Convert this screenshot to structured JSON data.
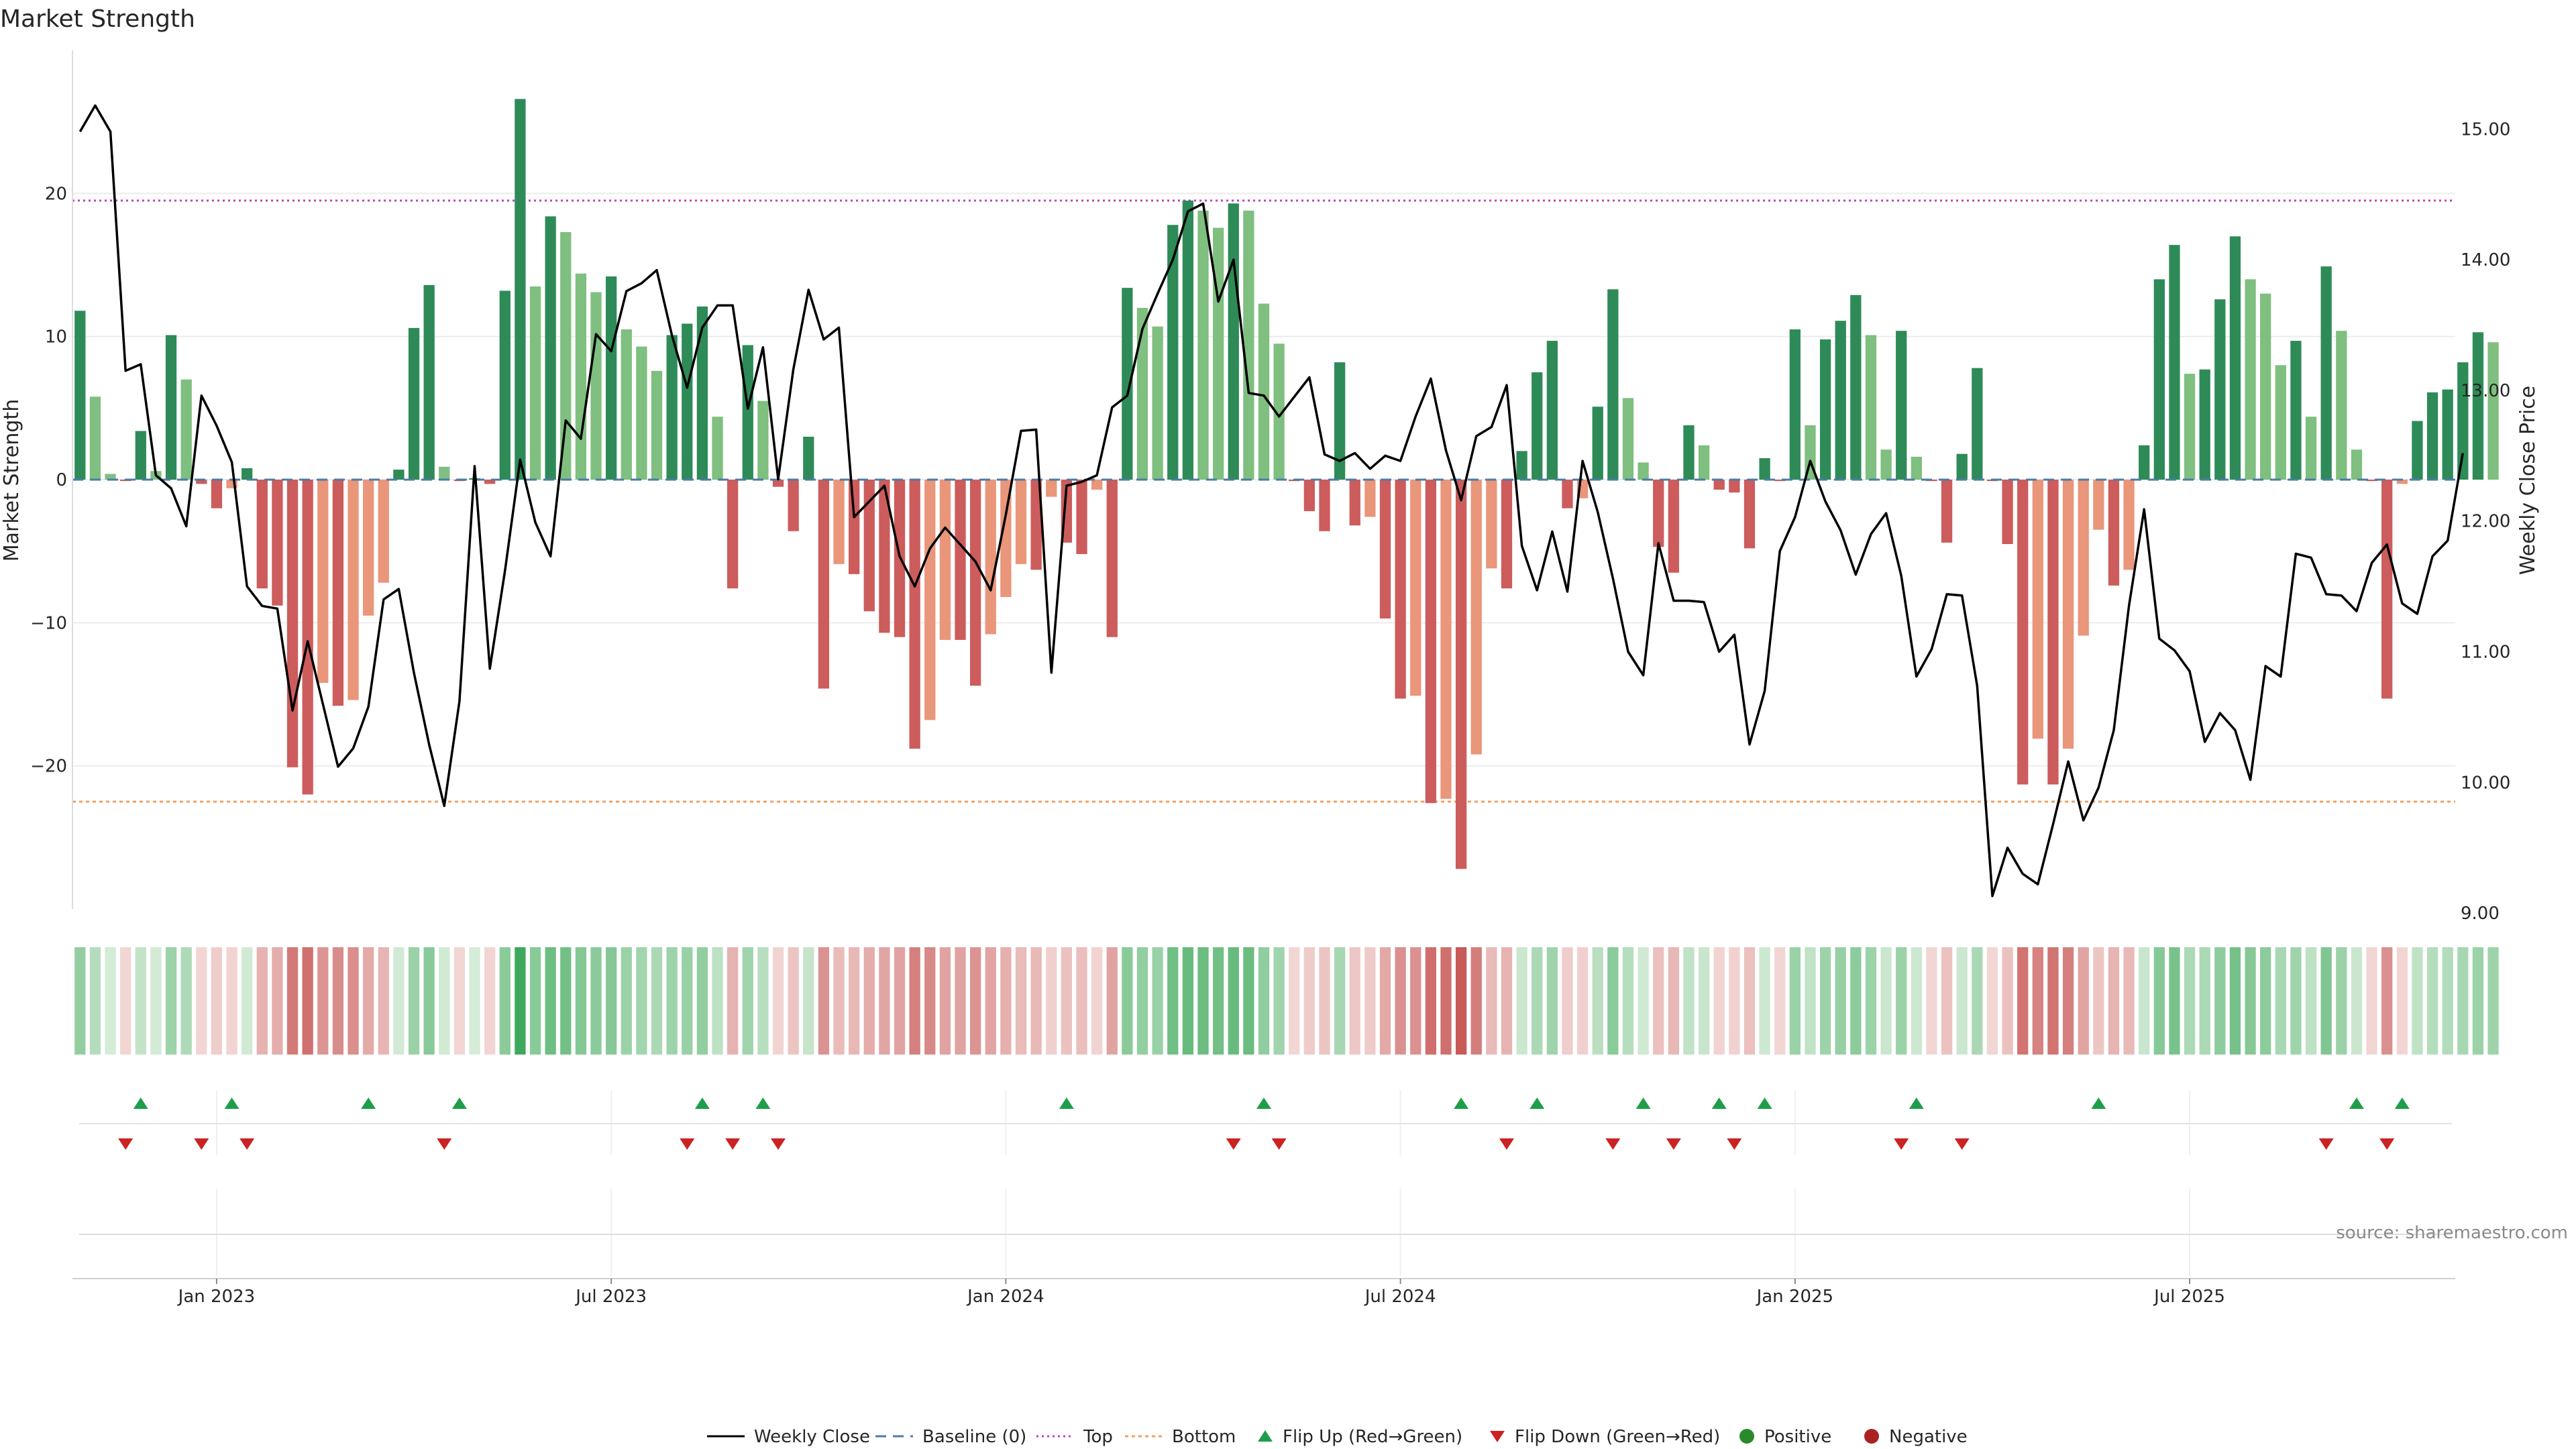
{
  "chart_data": {
    "type": "bar+line",
    "title": "Market Strength",
    "ylabel_left": "Market Strength",
    "ylabel_right": "Weekly Close Price",
    "left_ylim": [
      -30,
      30
    ],
    "left_yticks": [
      20,
      10,
      0,
      -10,
      -20
    ],
    "left_ytick_labels": [
      "20",
      "10",
      "0",
      "−10",
      "−20"
    ],
    "right_ylim": [
      8.8,
      15.5
    ],
    "right_yticks": [
      15.0,
      14.0,
      13.0,
      12.0,
      11.0,
      10.0,
      9.0
    ],
    "right_ytick_labels": [
      "15.00",
      "14.00",
      "13.00",
      "12.00",
      "11.00",
      "10.00",
      "9.00"
    ],
    "x_start": "2022-11-07",
    "week_count": 157,
    "xticks": [
      {
        "week": 9,
        "label": "Jan 2023"
      },
      {
        "week": 35,
        "label": "Jul 2023"
      },
      {
        "week": 61,
        "label": "Jan 2024"
      },
      {
        "week": 87,
        "label": "Jul 2024"
      },
      {
        "week": 113,
        "label": "Jan 2025"
      },
      {
        "week": 139,
        "label": "Jul 2025"
      }
    ],
    "top_threshold": 19.5,
    "bottom_threshold": -22.5,
    "strength": [
      11.8,
      5.8,
      0.4,
      -0.1,
      3.4,
      0.6,
      10.1,
      7.0,
      -0.3,
      -2.0,
      -0.6,
      0.8,
      -7.6,
      -8.8,
      -20.1,
      -22.0,
      -14.2,
      -15.8,
      -15.4,
      -9.5,
      -7.2,
      0.7,
      10.6,
      13.6,
      0.9,
      -0.1,
      0.1,
      -0.3,
      13.2,
      26.6,
      13.5,
      18.4,
      17.3,
      14.4,
      13.1,
      14.2,
      10.5,
      9.3,
      7.6,
      10.1,
      10.9,
      12.1,
      4.4,
      -7.6,
      9.4,
      5.5,
      -0.5,
      -3.6,
      3.0,
      -14.6,
      -5.9,
      -6.6,
      -9.2,
      -10.7,
      -11.0,
      -18.8,
      -16.8,
      -11.2,
      -11.2,
      -14.4,
      -10.8,
      -8.2,
      -5.9,
      -6.3,
      -1.2,
      -4.4,
      -5.2,
      -0.7,
      -11.0,
      13.4,
      12.0,
      10.7,
      17.8,
      19.5,
      18.8,
      17.6,
      19.3,
      18.8,
      12.3,
      9.5,
      -0.1,
      -2.2,
      -3.6,
      8.2,
      -3.2,
      -2.6,
      -9.7,
      -15.3,
      -15.1,
      -22.6,
      -22.3,
      -27.2,
      -19.2,
      -6.2,
      -7.6,
      2.0,
      7.5,
      9.7,
      -2.0,
      -1.3,
      5.1,
      13.3,
      5.7,
      1.2,
      -4.7,
      -6.5,
      3.8,
      2.4,
      -0.7,
      -0.9,
      -4.8,
      1.5,
      -0.1,
      10.5,
      3.8,
      9.8,
      11.1,
      12.9,
      10.1,
      2.1,
      10.4,
      1.6,
      -0.1,
      -4.4,
      1.8,
      7.8,
      -0.1,
      -4.5,
      -21.3,
      -18.1,
      -21.3,
      -18.8,
      -10.9,
      -3.5,
      -7.4,
      -6.3,
      2.4,
      14.0,
      16.4,
      7.4,
      7.7,
      12.6,
      17.0,
      14.0,
      13.0,
      8.0,
      9.7,
      4.4,
      14.9,
      10.4,
      2.1,
      -0.1,
      -15.3,
      -0.3,
      4.1,
      6.1,
      6.3,
      8.2,
      10.3,
      9.6
    ],
    "weekly_close": [
      14.98,
      15.18,
      14.98,
      13.15,
      13.2,
      12.35,
      12.25,
      11.96,
      12.96,
      12.73,
      12.45,
      11.5,
      11.35,
      11.33,
      10.55,
      11.08,
      10.6,
      10.12,
      10.26,
      10.58,
      11.4,
      11.48,
      10.84,
      10.29,
      9.82,
      10.62,
      12.42,
      10.87,
      11.62,
      12.47,
      11.99,
      11.73,
      12.77,
      12.63,
      13.43,
      13.3,
      13.76,
      13.82,
      13.92,
      13.42,
      13.02,
      13.48,
      13.65,
      13.65,
      12.86,
      13.33,
      12.32,
      13.16,
      13.77,
      13.39,
      13.48,
      12.03,
      12.15,
      12.27,
      11.73,
      11.5,
      11.79,
      11.95,
      11.82,
      11.69,
      11.47,
      12.05,
      12.69,
      12.7,
      10.84,
      12.27,
      12.3,
      12.35,
      12.87,
      12.96,
      13.47,
      13.74,
      14.0,
      14.37,
      14.43,
      13.68,
      14.0,
      12.98,
      12.96,
      12.8,
      12.95,
      13.1,
      12.51,
      12.46,
      12.52,
      12.4,
      12.5,
      12.46,
      12.8,
      13.09,
      12.54,
      12.16,
      12.65,
      12.72,
      13.04,
      11.81,
      11.47,
      11.92,
      11.46,
      12.46,
      12.07,
      11.56,
      11.0,
      10.82,
      11.83,
      11.39,
      11.39,
      11.38,
      11.0,
      11.13,
      10.29,
      10.7,
      11.77,
      12.03,
      12.46,
      12.15,
      11.93,
      11.59,
      11.9,
      12.06,
      11.58,
      10.81,
      11.02,
      11.44,
      11.43,
      10.74,
      9.13,
      9.5,
      9.3,
      9.22,
      9.68,
      10.16,
      9.71,
      9.96,
      10.4,
      11.35,
      12.09,
      11.1,
      11.01,
      10.85,
      10.31,
      10.53,
      10.4,
      10.02,
      10.89,
      10.81,
      11.75,
      11.72,
      11.44,
      11.43,
      11.31,
      11.68,
      11.82,
      11.37,
      11.29,
      11.73,
      11.85,
      12.52
    ],
    "flip_up_weeks": [
      4,
      10,
      19,
      25,
      41,
      45,
      65,
      78,
      91,
      96,
      103,
      108,
      111,
      121,
      133,
      150,
      153
    ],
    "flip_down_weeks": [
      3,
      8,
      11,
      24,
      40,
      43,
      46,
      76,
      79,
      94,
      101,
      105,
      109,
      120,
      124,
      148,
      152
    ],
    "legend": [
      "Weekly Close",
      "Baseline (0)",
      "Top",
      "Bottom",
      "Flip Up (Red→Green)",
      "Flip Down (Green→Red)",
      "Positive",
      "Negative"
    ],
    "source": "source: sharemaestro.com"
  },
  "colors": {
    "strong_green": "#2e8b57",
    "light_green": "#7fbf7f",
    "strong_red": "#cd5c5c",
    "light_red": "#e9967a",
    "close_line": "#000000",
    "baseline": "#4a7bab",
    "top_line": "#c040c0",
    "bottom_line": "#f0a060",
    "flip_up": "#1e9e4a",
    "flip_down": "#cc2222",
    "positive": "#2a8a2a",
    "negative": "#aa2222",
    "grid": "#ececec"
  }
}
